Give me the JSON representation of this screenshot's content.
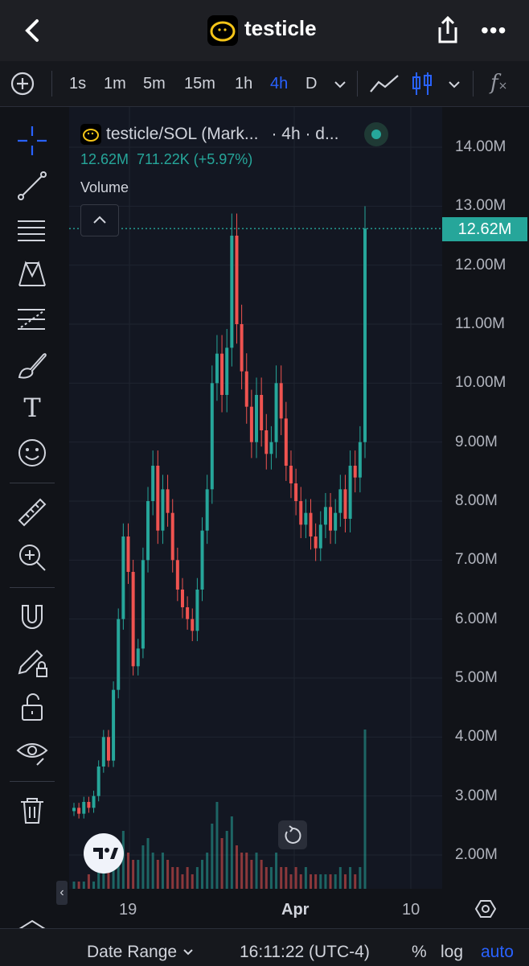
{
  "header": {
    "title": "testicle",
    "back_icon": "chevron-left-icon",
    "share_icon": "share-icon",
    "more_icon": "more-dots-icon"
  },
  "toolbar": {
    "add_icon": "plus-circle-icon",
    "timeframes": [
      "1s",
      "1m",
      "5m",
      "15m",
      "1h",
      "4h",
      "D"
    ],
    "active_timeframe": "4h",
    "dropdown_icon": "chevron-down-icon",
    "line_icon": "line-chart-icon",
    "candle_icon": "candlestick-icon",
    "fx_icon": "fx-icon",
    "fx_label": "f"
  },
  "sidebar": {
    "tools": [
      {
        "name": "crosshair-icon",
        "active": true
      },
      {
        "name": "trendline-icon"
      },
      {
        "name": "fib-retracement-icon"
      },
      {
        "name": "pattern-icon"
      },
      {
        "name": "prediction-icon"
      },
      {
        "name": "brush-icon"
      },
      {
        "name": "text-tool-icon",
        "label": "T"
      },
      {
        "name": "emoji-icon"
      },
      {
        "name": "ruler-icon"
      },
      {
        "name": "zoom-in-icon"
      },
      {
        "name": "magnet-icon"
      },
      {
        "name": "lock-drawing-icon"
      },
      {
        "name": "unlock-icon"
      },
      {
        "name": "eye-icon"
      },
      {
        "name": "trash-icon"
      }
    ],
    "layers_icon": "layers-icon",
    "collapse_label": "‹"
  },
  "legend": {
    "symbol": "testicle/SOL (Mark...",
    "interval": "· 4h · d...",
    "values": "12.62M  711.22K (+5.97%)",
    "indicator": "Volume",
    "collapse_icon": "chevron-up-icon"
  },
  "price_axis": {
    "ticks": [
      "14.00M",
      "13.00M",
      "12.00M",
      "11.00M",
      "10.00M",
      "9.00M",
      "8.00M",
      "7.00M",
      "6.00M",
      "5.00M",
      "4.00M",
      "3.00M",
      "2.00M"
    ],
    "current_label": "12.62M",
    "settings_icon": "settings-hex-icon"
  },
  "time_axis": {
    "ticks": [
      "19",
      "Apr",
      "10"
    ]
  },
  "bottom_bar": {
    "date_range": "Date Range",
    "time": "16:11:22 (UTC-4)",
    "percent": "%",
    "log": "log",
    "auto": "auto"
  },
  "colors": {
    "up": "#26a69a",
    "down": "#ef5350",
    "accent": "#2962ff",
    "background": "#131722"
  },
  "misc": {
    "tv_logo": "tradingview-logo",
    "reset_icon": "reset-rotate-icon"
  },
  "chart_data": {
    "type": "candlestick",
    "title": "testicle/SOL",
    "interval": "4h",
    "ylabel": "",
    "ylim": [
      1.4,
      14.6
    ],
    "last_price": 12.62,
    "x_ticks": [
      "19",
      "Apr",
      "10"
    ],
    "close_series_millions": [
      2.8,
      2.7,
      2.9,
      2.8,
      3.0,
      3.5,
      4.0,
      3.6,
      4.8,
      6.0,
      7.4,
      6.8,
      5.2,
      5.5,
      7.0,
      8.0,
      8.6,
      7.5,
      8.2,
      7.8,
      7.0,
      6.5,
      6.2,
      6.0,
      5.8,
      6.5,
      7.5,
      8.2,
      10.0,
      10.5,
      9.8,
      10.6,
      12.5,
      11.0,
      10.2,
      9.6,
      9.0,
      9.8,
      9.2,
      8.8,
      9.0,
      10.0,
      9.4,
      8.6,
      8.3,
      8.0,
      7.6,
      7.8,
      7.4,
      7.2,
      7.6,
      7.9,
      7.5,
      7.8,
      8.2,
      7.7,
      8.6,
      8.4,
      9.0,
      12.62
    ],
    "volume_series": [
      0.1,
      0.1,
      0.1,
      0.2,
      0.1,
      0.3,
      0.4,
      0.3,
      0.5,
      0.6,
      0.8,
      0.5,
      0.4,
      0.4,
      0.6,
      0.7,
      0.5,
      0.4,
      0.5,
      0.4,
      0.3,
      0.3,
      0.2,
      0.3,
      0.2,
      0.3,
      0.4,
      0.5,
      0.9,
      1.2,
      0.7,
      0.8,
      1.0,
      0.6,
      0.5,
      0.5,
      0.4,
      0.5,
      0.4,
      0.3,
      0.3,
      0.5,
      0.3,
      0.3,
      0.2,
      0.3,
      0.2,
      0.3,
      0.2,
      0.2,
      0.2,
      0.2,
      0.2,
      0.2,
      0.3,
      0.2,
      0.3,
      0.2,
      0.3,
      2.2
    ]
  }
}
